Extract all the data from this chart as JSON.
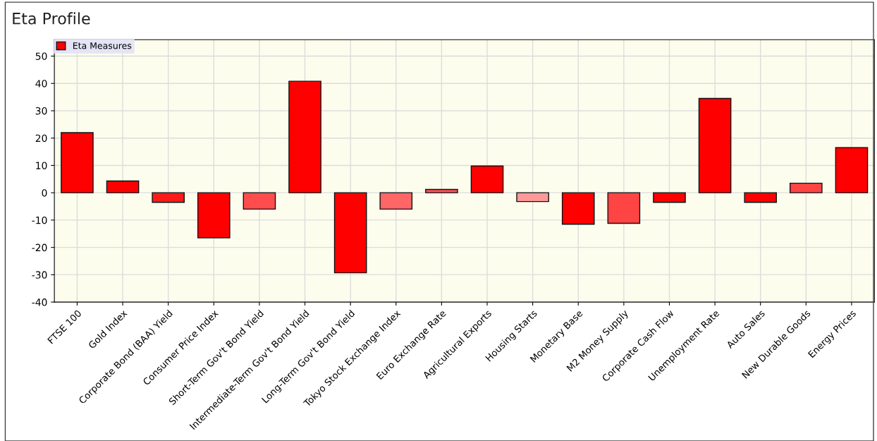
{
  "chart_data": {
    "type": "bar",
    "title": "Eta Profile",
    "categories": [
      "FTSE 100",
      "Gold Index",
      "Corporate Bond (BAA) Yield",
      "Consumer Price Index",
      "Short-Term Gov't Bond Yield",
      "Intermediate-Term Gov't Bond Yield",
      "Long-Term Gov't Bond Yield",
      "Tokyo Stock Exchange Index",
      "Euro Exchange Rate",
      "Agricultural Exports",
      "Housing Starts",
      "Monetary Base",
      "M2 Money Supply",
      "Corporate Cash Flow",
      "Unemployment Rate",
      "Auto Sales",
      "New Durable Goods",
      "Energy Prices"
    ],
    "series": [
      {
        "name": "Eta Measures",
        "color": "#ff0000",
        "values": [
          22,
          4.3,
          -3.5,
          -16.5,
          -6,
          40.8,
          -29.3,
          -6,
          1.2,
          9.8,
          -3.2,
          -11.5,
          -11.2,
          -3.5,
          34.5,
          -3.5,
          3.5,
          16.5
        ],
        "colors": [
          "#ff0000",
          "#ff0000",
          "#ff1a1a",
          "#ff0000",
          "#ff4d4d",
          "#ff0000",
          "#ff0000",
          "#ff6666",
          "#ff5050",
          "#ff0000",
          "#ff9999",
          "#ff0000",
          "#ff4444",
          "#ff0000",
          "#ff0000",
          "#ff0000",
          "#ff4444",
          "#ff0000"
        ]
      }
    ],
    "ylim": [
      -40,
      56
    ],
    "yticks": [
      -40,
      -30,
      -20,
      -10,
      0,
      10,
      20,
      30,
      40,
      50
    ],
    "grid": true,
    "legend": "top left"
  }
}
